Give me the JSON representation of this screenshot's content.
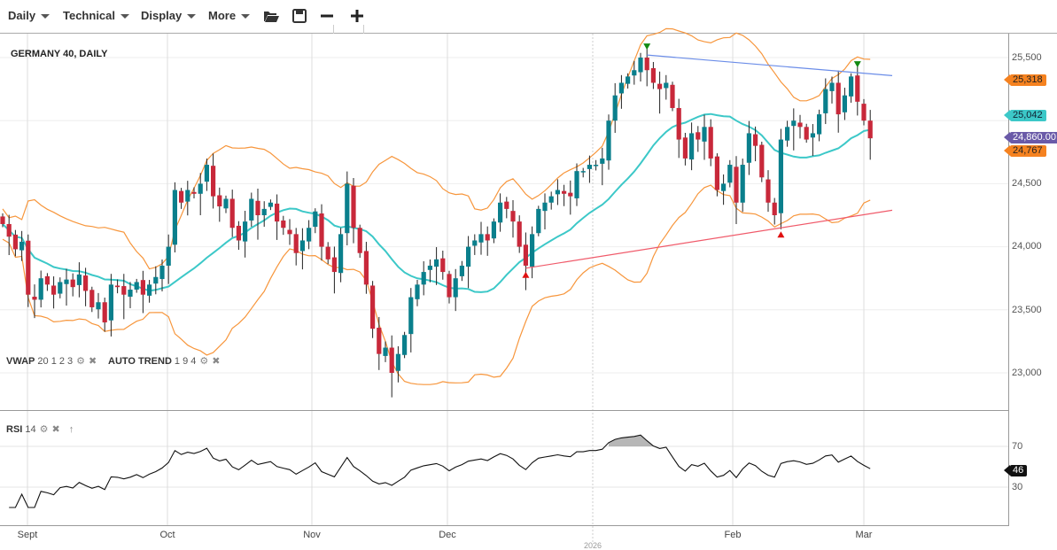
{
  "toolbar": {
    "items": [
      {
        "label": "Daily"
      },
      {
        "label": "Technical"
      },
      {
        "label": "Display"
      },
      {
        "label": "More"
      }
    ],
    "icons": [
      "open-folder-icon",
      "save-icon",
      "zoom-out-icon",
      "zoom-in-icon"
    ]
  },
  "chart": {
    "title": "GERMANY 40, DAILY",
    "indicators": {
      "vwap": {
        "name": "VWAP",
        "params": "20 1 2 3"
      },
      "auto_trend": {
        "name": "AUTO TREND",
        "params": "1 9 4"
      },
      "rsi": {
        "name": "RSI",
        "params": "14"
      }
    },
    "price_axis": [
      "25,500",
      "24,500",
      "24,000",
      "23,500",
      "23,000"
    ],
    "rsi_axis": [
      "70",
      "30"
    ],
    "tags": {
      "upper_band": {
        "text": "25,318",
        "value": 25318,
        "color": "#f58220"
      },
      "middle_band": {
        "text": "25,042",
        "value": 25042,
        "color": "#3cc8c8"
      },
      "last_price": {
        "text": "24,860.00",
        "value": 24860,
        "color": "#6a5aa8"
      },
      "lower_band": {
        "text": "24,767",
        "value": 24767,
        "color": "#f58220"
      },
      "rsi": {
        "text": "46",
        "value": 46,
        "color": "#111111"
      }
    },
    "months": [
      "Sept",
      "Oct",
      "Nov",
      "Dec",
      "2026",
      "Feb",
      "Mar"
    ],
    "colors": {
      "up": "#0a7f8c",
      "down": "#c8283a",
      "band": "#f7963c",
      "sma": "#3cc8c8",
      "resistance": "#6b8de8",
      "support": "#f05a6a"
    },
    "resistance_prices": [
      25520,
      25380
    ],
    "support_prices": [
      23830,
      24150
    ]
  },
  "chart_data": {
    "type": "candlestick",
    "close": [
      24180,
      24080,
      23980,
      24040,
      23620,
      23580,
      23750,
      23700,
      23620,
      23720,
      23740,
      23680,
      23780,
      23650,
      23520,
      23560,
      23400,
      23700,
      23680,
      23620,
      23660,
      23720,
      23620,
      23700,
      23760,
      23850,
      24000,
      24450,
      24350,
      24450,
      24420,
      24500,
      24650,
      24400,
      24320,
      24380,
      24150,
      24050,
      24200,
      24380,
      24250,
      24300,
      24350,
      24200,
      24150,
      24100,
      23950,
      24050,
      24150,
      24280,
      24000,
      23900,
      23800,
      24100,
      24500,
      24150,
      23950,
      23700,
      23350,
      23150,
      23200,
      23000,
      23150,
      23300,
      23600,
      23700,
      23800,
      23850,
      23900,
      23800,
      23600,
      23750,
      23850,
      24000,
      24050,
      24100,
      24050,
      24200,
      24350,
      24300,
      24200,
      24000,
      23850,
      24100,
      24300,
      24350,
      24400,
      24450,
      24420,
      24400,
      24600,
      24600,
      24650,
      24650,
      24700,
      25000,
      25200,
      25300,
      25350,
      25400,
      25500,
      25400,
      25300,
      25250,
      25300,
      25100,
      24850,
      24700,
      24900,
      24850,
      24950,
      24700,
      24450,
      24500,
      24650,
      24350,
      24650,
      24900,
      24800,
      24550,
      24350,
      24250,
      24850,
      24950,
      25000,
      24950,
      24850,
      24900,
      25050,
      25250,
      25300,
      25050,
      25200,
      25350,
      25150,
      25000,
      24860
    ],
    "ylim": [
      22750,
      25750
    ],
    "rsi_ylim": [
      10,
      90
    ]
  }
}
